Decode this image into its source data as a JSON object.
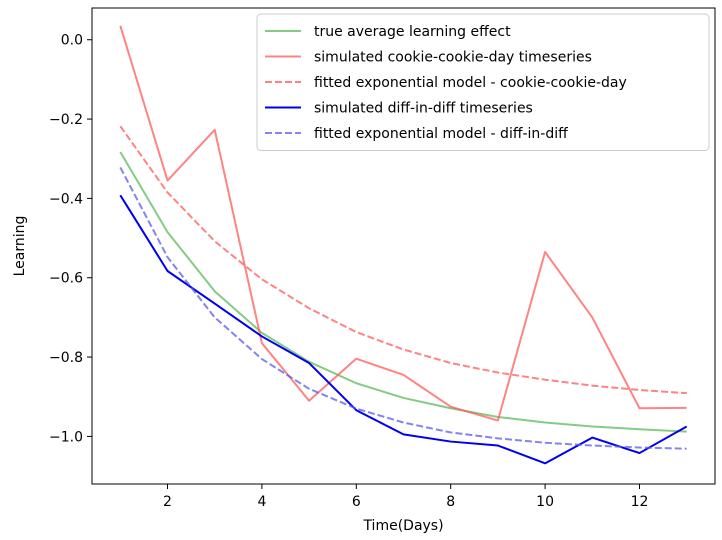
{
  "chart_data": {
    "type": "line",
    "title": "",
    "xlabel": "Time(Days)",
    "ylabel": "Learning",
    "xlim": [
      0.4,
      13.6
    ],
    "ylim": [
      -1.12,
      0.08
    ],
    "x_ticks": [
      2,
      4,
      6,
      8,
      10,
      12
    ],
    "y_ticks": [
      0.0,
      -0.2,
      -0.4,
      -0.6,
      -0.8,
      -1.0
    ],
    "x_tick_labels": [
      "2",
      "4",
      "6",
      "8",
      "10",
      "12"
    ],
    "y_tick_labels": [
      "0.0",
      "−0.2",
      "−0.4",
      "−0.6",
      "−0.8",
      "−1.0"
    ],
    "grid": false,
    "legend_position": "top-right",
    "x": [
      1,
      2,
      3,
      4,
      5,
      6,
      7,
      8,
      9,
      10,
      11,
      12,
      13
    ],
    "series": [
      {
        "name": "true average learning effect",
        "color": "#5cb85c",
        "dash": "solid",
        "opacity": 0.75,
        "values": [
          -0.283,
          -0.485,
          -0.634,
          -0.739,
          -0.812,
          -0.866,
          -0.903,
          -0.929,
          -0.951,
          -0.965,
          -0.975,
          -0.982,
          -0.988
        ]
      },
      {
        "name": "simulated cookie-cookie-day timeseries",
        "color": "#ff5a5a",
        "dash": "solid",
        "opacity": 0.75,
        "values": [
          0.035,
          -0.355,
          -0.227,
          -0.765,
          -0.91,
          -0.804,
          -0.845,
          -0.925,
          -0.96,
          -0.535,
          -0.7,
          -0.929,
          -0.928
        ]
      },
      {
        "name": "fitted exponential model - cookie-cookie-day",
        "color": "#ff5a5a",
        "dash": "dashed",
        "opacity": 0.75,
        "values": [
          -0.218,
          -0.385,
          -0.508,
          -0.604,
          -0.677,
          -0.737,
          -0.781,
          -0.815,
          -0.839,
          -0.857,
          -0.872,
          -0.883,
          -0.891
        ]
      },
      {
        "name": "simulated diff-in-diff timeseries",
        "color": "#0000ee",
        "dash": "solid",
        "opacity": 1,
        "values": [
          -0.392,
          -0.583,
          -0.665,
          -0.748,
          -0.815,
          -0.934,
          -0.995,
          -1.013,
          -1.023,
          -1.068,
          -1.003,
          -1.042,
          -0.975
        ]
      },
      {
        "name": "fitted exponential model - diff-in-diff",
        "color": "#5a5aee",
        "dash": "dashed",
        "opacity": 0.75,
        "values": [
          -0.322,
          -0.548,
          -0.7,
          -0.805,
          -0.88,
          -0.93,
          -0.965,
          -0.99,
          -1.005,
          -1.016,
          -1.023,
          -1.028,
          -1.031
        ]
      }
    ]
  }
}
